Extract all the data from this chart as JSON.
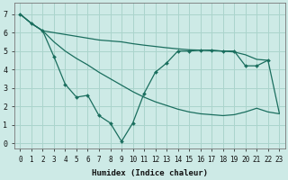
{
  "xlabel": "Humidex (Indice chaleur)",
  "bg_color": "#cdeae6",
  "grid_color": "#aad4cc",
  "line_color": "#1a6e5e",
  "xlim": [
    -0.5,
    23.5
  ],
  "ylim": [
    -0.3,
    7.6
  ],
  "xticks": [
    0,
    1,
    2,
    3,
    4,
    5,
    6,
    7,
    8,
    9,
    10,
    11,
    12,
    13,
    14,
    15,
    16,
    17,
    18,
    19,
    20,
    21,
    22,
    23
  ],
  "yticks": [
    0,
    1,
    2,
    3,
    4,
    5,
    6,
    7
  ],
  "line1_x": [
    0,
    1,
    2,
    3,
    4,
    5,
    6,
    7,
    8,
    9,
    10,
    11,
    12,
    13,
    14,
    15,
    16,
    17,
    18,
    19,
    20,
    21,
    22,
    23
  ],
  "line1_y": [
    7.0,
    6.5,
    6.1,
    6.0,
    5.9,
    5.8,
    5.7,
    5.6,
    5.55,
    5.5,
    5.4,
    5.32,
    5.25,
    5.18,
    5.12,
    5.07,
    5.05,
    5.02,
    5.0,
    4.95,
    4.8,
    4.55,
    4.5,
    1.65
  ],
  "line2_x": [
    0,
    1,
    2,
    3,
    4,
    5,
    6,
    7,
    8,
    9,
    10,
    11,
    12,
    13,
    14,
    15,
    16,
    17,
    18,
    19,
    20,
    21,
    22,
    23
  ],
  "line2_y": [
    7.0,
    6.5,
    6.1,
    5.5,
    5.0,
    4.6,
    4.25,
    3.85,
    3.5,
    3.15,
    2.8,
    2.5,
    2.25,
    2.05,
    1.85,
    1.7,
    1.6,
    1.55,
    1.5,
    1.55,
    1.7,
    1.9,
    1.7,
    1.6
  ],
  "line3_x": [
    0,
    1,
    2,
    3,
    4,
    5,
    6,
    7,
    8,
    9,
    10,
    11,
    12,
    13,
    14,
    15,
    16,
    17,
    18,
    19,
    20,
    21,
    22
  ],
  "line3_y": [
    7.0,
    6.5,
    6.1,
    4.7,
    3.2,
    2.5,
    2.6,
    1.5,
    1.1,
    0.1,
    1.1,
    2.7,
    3.85,
    4.35,
    5.0,
    5.0,
    5.05,
    5.05,
    5.0,
    5.0,
    4.2,
    4.2,
    4.5
  ]
}
